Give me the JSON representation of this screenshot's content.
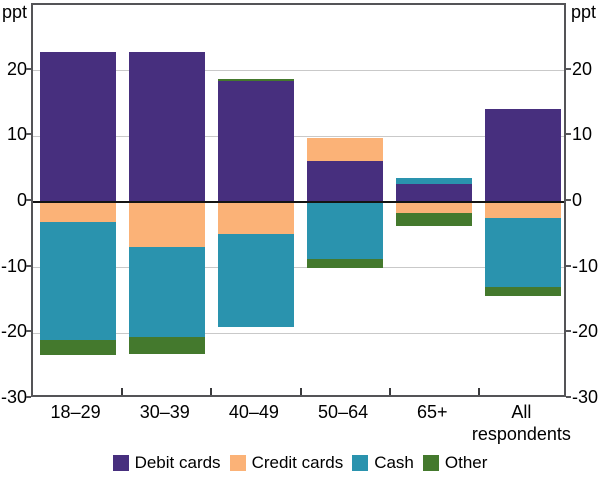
{
  "labels": {
    "ppt_left": "ppt",
    "ppt_right": "ppt"
  },
  "chart_data": {
    "type": "bar",
    "stacked": true,
    "categories": [
      "18–29",
      "30–39",
      "40–49",
      "50–64",
      "65+",
      "All respondents"
    ],
    "series": [
      {
        "name": "Debit cards",
        "color": "#472F7E",
        "values": [
          22.8,
          22.8,
          18.5,
          6.3,
          2.7,
          14.1
        ]
      },
      {
        "name": "Credit cards",
        "color": "#FBB277",
        "values": [
          -3.1,
          -6.9,
          -4.8,
          3.4,
          -1.6,
          -2.5
        ]
      },
      {
        "name": "Cash",
        "color": "#2A93AE",
        "values": [
          -17.9,
          -13.6,
          -14.2,
          -8.7,
          0.9,
          -10.5
        ]
      },
      {
        "name": "Other",
        "color": "#44792D",
        "values": [
          -2.3,
          -2.6,
          0.3,
          -1.4,
          -2.0,
          -1.3
        ]
      }
    ],
    "title": "",
    "xlabel": "",
    "ylabel": "ppt",
    "ylim": [
      -30,
      30
    ],
    "yticks": [
      -30,
      -20,
      -10,
      0,
      10,
      20
    ],
    "grid": true,
    "legend_position": "bottom",
    "zero_line": true,
    "colors": {
      "gridline": "#c9c9c9",
      "zero_line": "#141414",
      "axis_box": "#545457",
      "text": "#000000"
    }
  }
}
